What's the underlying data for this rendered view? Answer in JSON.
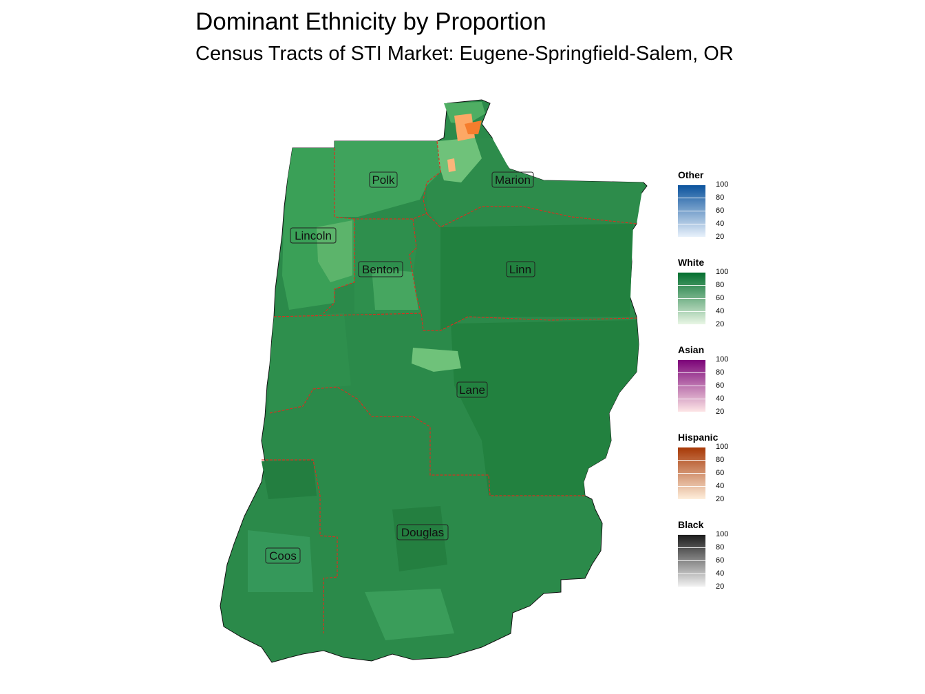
{
  "title": "Dominant Ethnicity by Proportion",
  "subtitle": "Census Tracts of STI Market: Eugene-Springfield-Salem, OR",
  "counties": [
    {
      "name": "Polk"
    },
    {
      "name": "Marion"
    },
    {
      "name": "Lincoln"
    },
    {
      "name": "Benton"
    },
    {
      "name": "Linn"
    },
    {
      "name": "Lane"
    },
    {
      "name": "Douglas"
    },
    {
      "name": "Coos"
    }
  ],
  "legends": [
    {
      "title": "Other",
      "ticks": [
        "100",
        "80",
        "60",
        "40",
        "20"
      ],
      "color_low": "#e8f1fb",
      "color_high": "#08519c"
    },
    {
      "title": "White",
      "ticks": [
        "100",
        "80",
        "60",
        "40",
        "20"
      ],
      "color_low": "#e9f6e5",
      "color_high": "#006d2c"
    },
    {
      "title": "Asian",
      "ticks": [
        "100",
        "80",
        "60",
        "40",
        "20"
      ],
      "color_low": "#fde6e6",
      "color_high": "#7a0177"
    },
    {
      "title": "Hispanic",
      "ticks": [
        "100",
        "80",
        "60",
        "40",
        "20"
      ],
      "color_low": "#feeedb",
      "color_high": "#a63603"
    },
    {
      "title": "Black",
      "ticks": [
        "100",
        "80",
        "60",
        "40",
        "20"
      ],
      "color_low": "#f2f2f2",
      "color_high": "#1a1a1a"
    }
  ],
  "colors": {
    "white_dominant": "#2b8a4a",
    "white_dark": "#1f7a3e",
    "white_light": "#4fae63",
    "white_pale": "#8fd08f",
    "hispanic_light": "#fda865",
    "hispanic_mid": "#f57d2d",
    "county_border": "#d7301f"
  }
}
